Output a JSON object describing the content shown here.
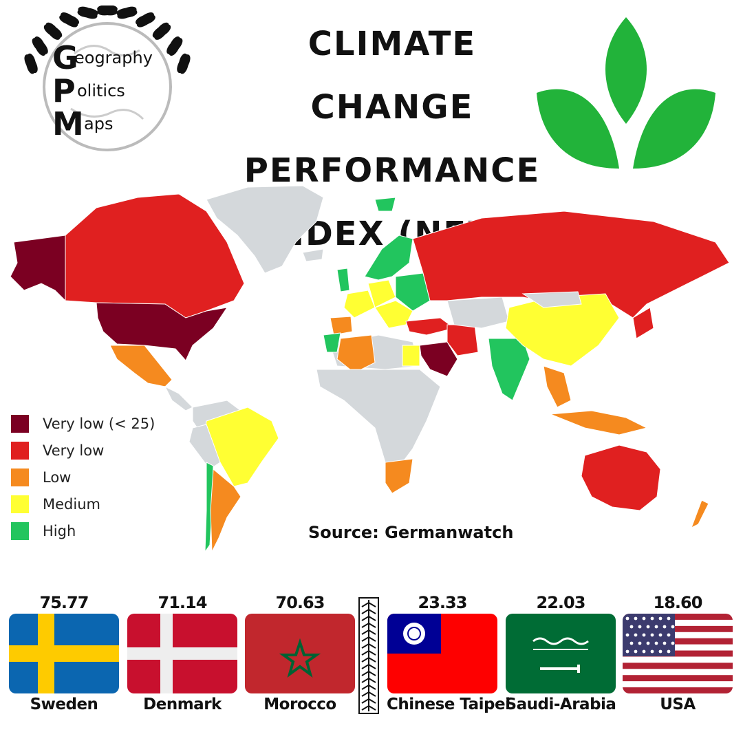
{
  "title": [
    "CLIMATE CHANGE",
    "PERFORMANCE",
    "INDEX (NEW)"
  ],
  "logo": {
    "letters": [
      "G",
      "P",
      "M"
    ],
    "words": [
      "eography",
      "olitics",
      "aps"
    ]
  },
  "legend": [
    {
      "label": "Very low (< 25)",
      "color": "#7b0022"
    },
    {
      "label": "Very low",
      "color": "#e02020"
    },
    {
      "label": "Low",
      "color": "#f58a1f"
    },
    {
      "label": "Medium",
      "color": "#ffff33"
    },
    {
      "label": "High",
      "color": "#22c55e"
    }
  ],
  "no_data_color": "#d4d8db",
  "source": "Source: Germanwatch",
  "top": [
    {
      "score": "75.77",
      "country": "Sweden",
      "flag": "sweden"
    },
    {
      "score": "71.14",
      "country": "Denmark",
      "flag": "denmark"
    },
    {
      "score": "70.63",
      "country": "Morocco",
      "flag": "morocco"
    }
  ],
  "bottom": [
    {
      "score": "23.33",
      "country": "Chinese Taipei",
      "flag": "taiwan"
    },
    {
      "score": "22.03",
      "country": "Saudi-Arabia",
      "flag": "saudi"
    },
    {
      "score": "18.60",
      "country": "USA",
      "flag": "usa"
    }
  ]
}
